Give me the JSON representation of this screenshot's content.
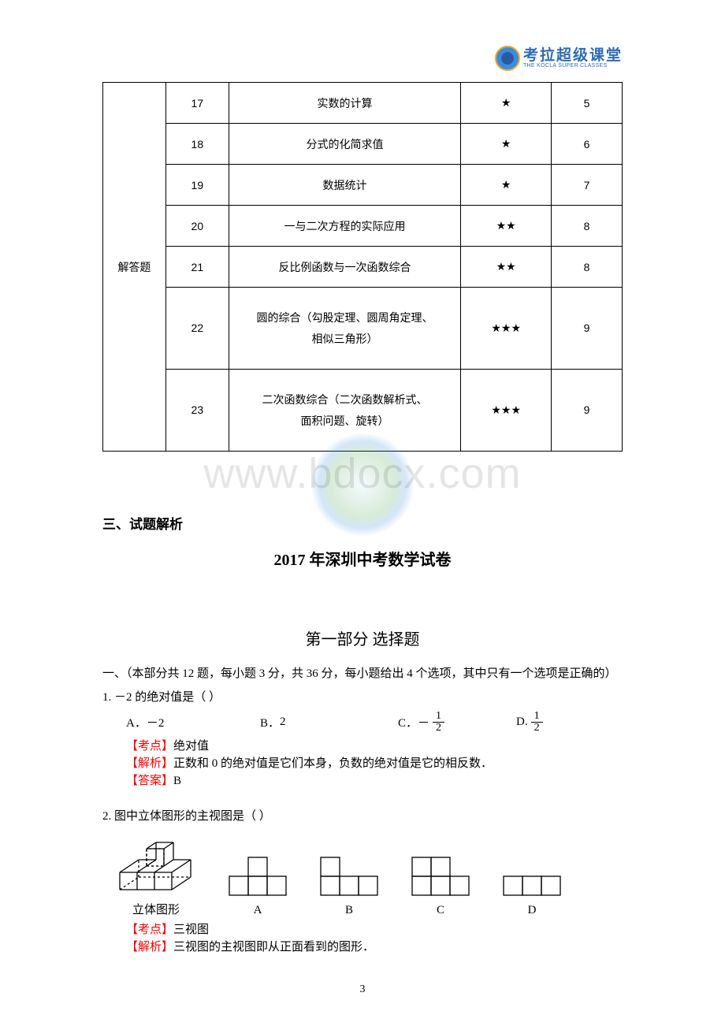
{
  "logo": {
    "line1": "考拉超级课堂",
    "line2": "THE KOCLA SUPER CLASSES"
  },
  "watermark": {
    "text": "www.bdocx.com"
  },
  "table": {
    "category": "解答题",
    "col_widths": {
      "c1": 80,
      "c2": 80,
      "c3": 295,
      "c4": 115,
      "c5": 90
    },
    "rows": [
      {
        "num": "17",
        "topic": "实数的计算",
        "stars": "★",
        "score": "5",
        "h": 1
      },
      {
        "num": "18",
        "topic": "分式的化简求值",
        "stars": "★",
        "score": "6",
        "h": 1
      },
      {
        "num": "19",
        "topic": "数据统计",
        "stars": "★",
        "score": "7",
        "h": 1
      },
      {
        "num": "20",
        "topic": "一与二次方程的实际应用",
        "stars": "★★",
        "score": "8",
        "h": 1
      },
      {
        "num": "21",
        "topic": "反比例函数与一次函数综合",
        "stars": "★★",
        "score": "8",
        "h": 1
      },
      {
        "num": "22",
        "topic": "圆的综合（勾股定理、圆周角定理、<br>相似三角形）",
        "stars": "★★★",
        "score": "9",
        "h": 2
      },
      {
        "num": "23",
        "topic": "二次函数综合（二次函数解析式、<br>面积问题、旋转）",
        "stars": "★★★",
        "score": "9",
        "h": 2
      }
    ]
  },
  "section_title": "三、试题解析",
  "paper_title": "2017 年深圳中考数学试卷",
  "part_title": "第一部分  选择题",
  "instructions": "一、（本部分共 12 题，每小题 3 分，共 36 分，每小题给出 4 个选项，其中只有一个选项是正确的）",
  "q1": {
    "stem_prefix": "1.   －2 的绝对值是（     ）",
    "options": {
      "A": {
        "label": "A．",
        "text": "－2"
      },
      "B": {
        "label": "B．",
        "text": "2"
      },
      "C": {
        "label": "C．",
        "neg": "－",
        "frac": {
          "num": "1",
          "den": "2"
        }
      },
      "D": {
        "label": "D.",
        "frac": {
          "num": "1",
          "den": "2"
        }
      }
    },
    "tag_point": "【考点】",
    "point": "绝对值",
    "tag_analysis": "【解析】",
    "analysis": "正数和 0 的绝对值是它们本身，负数的绝对值是它的相反数．",
    "tag_answer": "【答案】",
    "answer": "B"
  },
  "q2": {
    "stem": "2.   图中立体图形的主视图是（     ）",
    "labels": {
      "solid": "立体图形",
      "A": "A",
      "B": "B",
      "C": "C",
      "D": "D"
    },
    "tag_point": "【考点】",
    "point": "三视图",
    "tag_analysis": "【解析】",
    "analysis": "三视图的主视图即从正面看到的图形．",
    "cell": 24,
    "line_color": "#000000"
  },
  "page_number": "3"
}
